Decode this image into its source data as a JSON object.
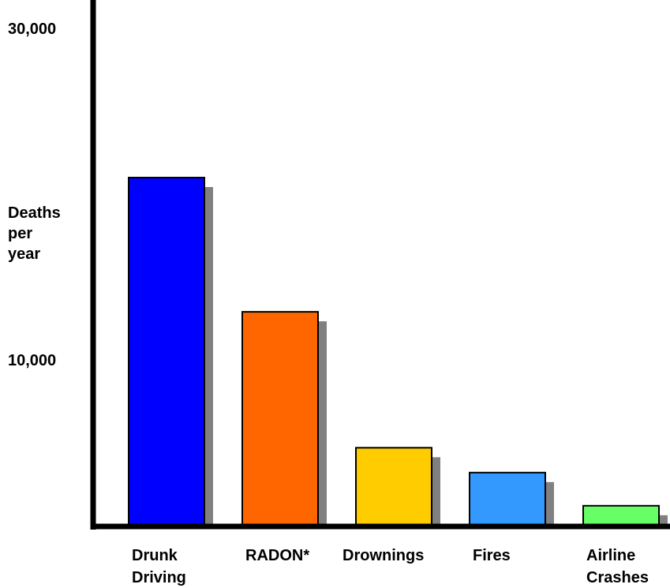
{
  "chart_data": {
    "type": "bar",
    "title": "",
    "xlabel": "",
    "ylabel": [
      "Deaths",
      "per",
      "year"
    ],
    "categories": [
      [
        "Drunk",
        "Driving"
      ],
      [
        "RADON*"
      ],
      [
        "Drownings"
      ],
      [
        "Fires"
      ],
      [
        "Airline",
        "Crashes"
      ]
    ],
    "values": [
      21000,
      12900,
      4700,
      3200,
      1200
    ],
    "colors": [
      "#0000ff",
      "#ff6600",
      "#ffcc00",
      "#3399ff",
      "#66ff66"
    ],
    "y_ticks": [
      {
        "value": 10000,
        "label": "10,000"
      },
      {
        "value": 30000,
        "label": "30,000"
      }
    ],
    "ylim": [
      0,
      31200
    ],
    "grid": false,
    "legend": "none",
    "bar_shadow": true
  }
}
